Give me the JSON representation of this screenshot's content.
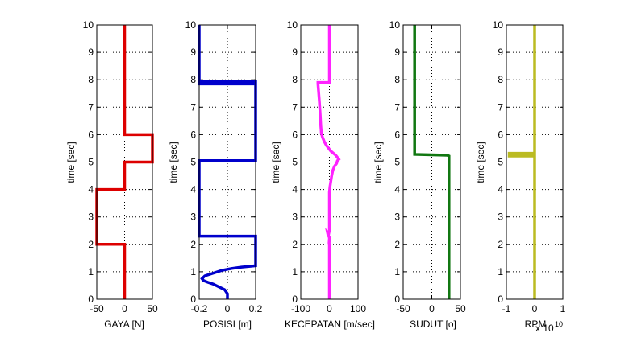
{
  "chart_data": [
    {
      "type": "line",
      "xlabel": "GAYA [N]",
      "ylabel": "time [sec]",
      "xlim": [
        -50,
        50
      ],
      "ylim": [
        0,
        10
      ],
      "xticks": [
        "-50",
        "0",
        "50"
      ],
      "yticks": [
        "0",
        "1",
        "2",
        "3",
        "4",
        "5",
        "6",
        "7",
        "8",
        "9",
        "10"
      ],
      "grid": true,
      "color": "#dd0000",
      "series": [
        {
          "x": [
            0,
            0,
            -50,
            -50,
            0,
            0,
            50,
            50,
            0,
            0
          ],
          "y": [
            0,
            2,
            2,
            4,
            4,
            5,
            5,
            6,
            6,
            10
          ]
        }
      ]
    },
    {
      "type": "line",
      "xlabel": "POSISI [m]",
      "ylabel": "time [sec]",
      "xlim": [
        -0.2,
        0.2
      ],
      "ylim": [
        0,
        10
      ],
      "xticks": [
        "-0.2",
        "0",
        "0.2"
      ],
      "yticks": [
        "0",
        "1",
        "2",
        "3",
        "4",
        "5",
        "6",
        "7",
        "8",
        "9",
        "10"
      ],
      "grid": true,
      "color": "#0000cc",
      "series": [
        {
          "x": [
            0,
            0,
            -0.02,
            -0.06,
            -0.1,
            -0.14,
            -0.17,
            -0.18,
            -0.16,
            -0.1,
            -0.04,
            0.03,
            0.1,
            0.16,
            0.2,
            0.2,
            -0.2,
            -0.2,
            0.2,
            0.2,
            -0.2,
            -0.2,
            0.2,
            0.2,
            -0.2,
            -0.2
          ],
          "y": [
            0,
            0.2,
            0.35,
            0.45,
            0.55,
            0.62,
            0.68,
            0.75,
            0.85,
            0.95,
            1.05,
            1.12,
            1.17,
            1.2,
            1.22,
            2.3,
            2.3,
            5.05,
            5.05,
            7.9,
            7.9,
            7.95,
            7.95,
            7.85,
            7.85,
            10
          ]
        }
      ]
    },
    {
      "type": "line",
      "xlabel": "KECEPATAN [m/sec]",
      "ylabel": "time [sec]",
      "xlim": [
        -100,
        100
      ],
      "ylim": [
        0,
        10
      ],
      "xticks": [
        "-100",
        "0",
        "100"
      ],
      "yticks": [
        "0",
        "1",
        "2",
        "3",
        "4",
        "5",
        "6",
        "7",
        "8",
        "9",
        "10"
      ],
      "grid": true,
      "color": "#ff22ff",
      "series": [
        {
          "x": [
            0,
            0,
            -1,
            0,
            0,
            -5,
            -7,
            -2,
            0,
            0,
            2,
            5,
            8,
            12,
            18,
            25,
            28,
            33,
            22,
            5,
            -10,
            -18,
            -24,
            -28,
            -30,
            -32,
            -35,
            -38,
            -40,
            -40,
            -30,
            -20,
            -10,
            0,
            0
          ],
          "y": [
            0,
            2.0,
            2.05,
            2.2,
            2.25,
            2.35,
            2.45,
            2.4,
            2.5,
            3.9,
            4.1,
            4.3,
            4.5,
            4.7,
            4.85,
            4.95,
            5.05,
            5.1,
            5.25,
            5.4,
            5.6,
            5.75,
            5.9,
            6.05,
            6.3,
            6.7,
            7.2,
            7.6,
            7.85,
            7.9,
            7.9,
            7.9,
            7.9,
            7.9,
            10
          ]
        }
      ]
    },
    {
      "type": "line",
      "xlabel": "SUDUT [o]",
      "ylabel": "time [sec]",
      "xlim": [
        -50,
        50
      ],
      "ylim": [
        0,
        10
      ],
      "xticks": [
        "-50",
        "0",
        "50"
      ],
      "yticks": [
        "0",
        "1",
        "2",
        "3",
        "4",
        "5",
        "6",
        "7",
        "8",
        "9",
        "10"
      ],
      "grid": true,
      "color": "#117711",
      "series": [
        {
          "x": [
            30,
            30,
            27,
            -30,
            -30
          ],
          "y": [
            0,
            5.22,
            5.25,
            5.28,
            10
          ]
        }
      ]
    },
    {
      "type": "line",
      "xlabel": "RPM",
      "ylabel": "time [sec]",
      "x_exponent": "x 10",
      "x_exponent_power": "10",
      "xlim": [
        -1,
        1
      ],
      "ylim": [
        0,
        10
      ],
      "xticks": [
        "-1",
        "0",
        "1"
      ],
      "yticks": [
        "0",
        "1",
        "2",
        "3",
        "4",
        "5",
        "6",
        "7",
        "8",
        "9",
        "10"
      ],
      "grid": true,
      "color": "#bbbb22",
      "series": [
        {
          "x": [
            0,
            0,
            0,
            -0.9,
            -0.9,
            0,
            0,
            0
          ],
          "y": [
            0,
            2.6,
            5.22,
            5.22,
            5.32,
            5.32,
            6.0,
            10
          ]
        }
      ]
    }
  ]
}
